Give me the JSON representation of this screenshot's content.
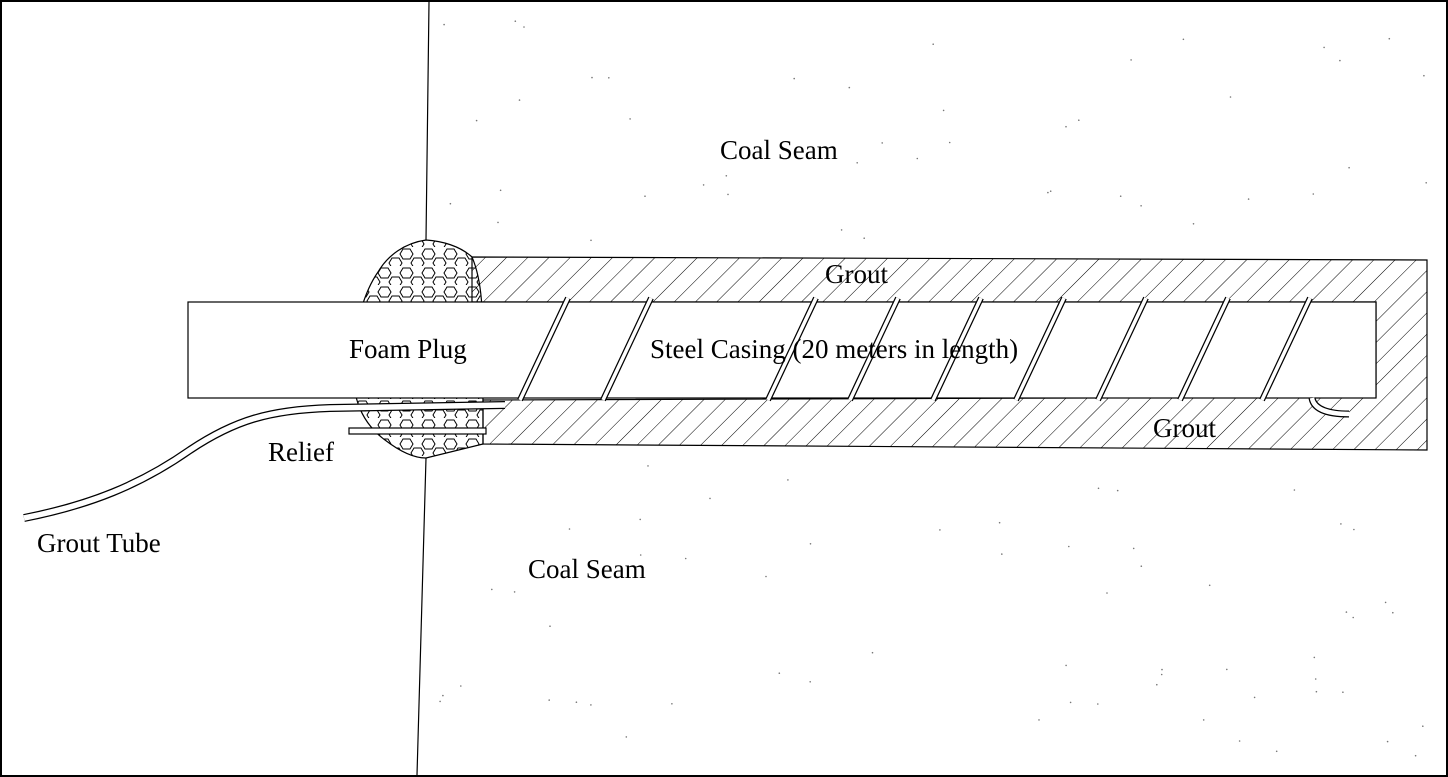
{
  "labels": {
    "coal_seam_top": "Coal Seam",
    "coal_seam_bottom": "Coal Seam",
    "grout_top": "Grout",
    "grout_bottom": "Grout",
    "foam_plug": "Foam Plug",
    "steel_casing": "Steel Casing (20 meters in length)",
    "relief": "Relief",
    "grout_tube": "Grout Tube"
  },
  "colors": {
    "line": "#000000",
    "background": "#ffffff"
  }
}
